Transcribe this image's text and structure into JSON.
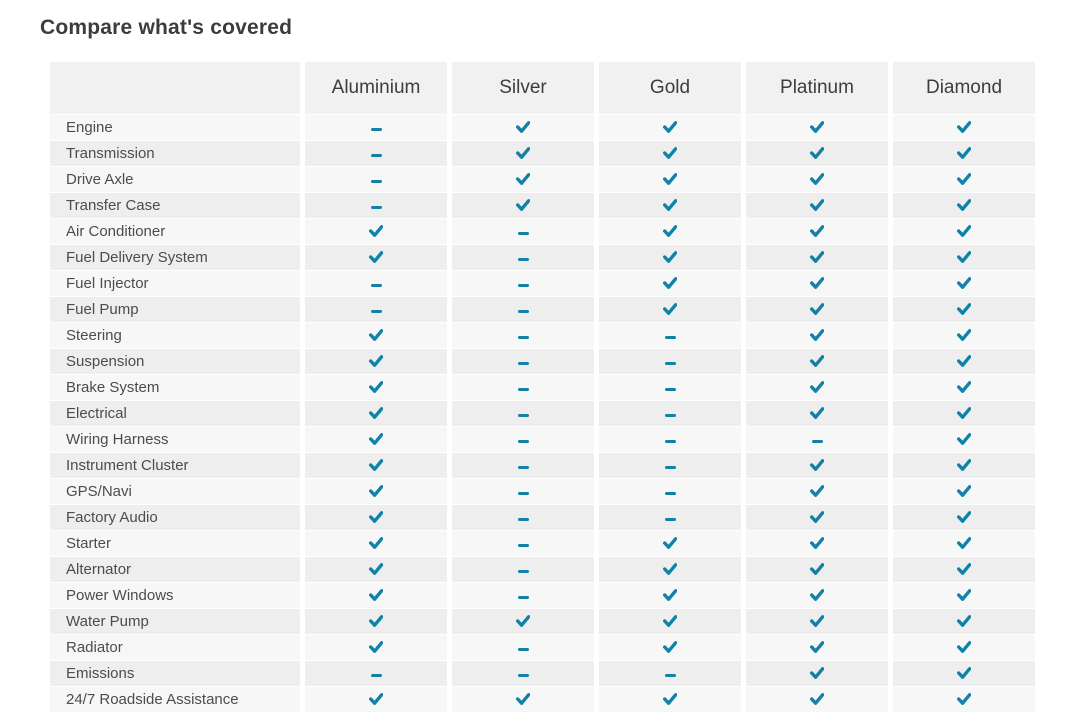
{
  "page": {
    "title": "Compare what's covered"
  },
  "colors": {
    "check": "#1181a8",
    "header_bg": "#f1f1f1",
    "row_odd_bg": "#f7f7f7",
    "row_even_bg": "#eeeeee"
  },
  "table": {
    "columns": [
      "",
      "Aluminium",
      "Silver",
      "Gold",
      "Platinum",
      "Diamond"
    ],
    "rows": [
      {
        "feature": "Engine",
        "coverage": [
          "dash",
          "check",
          "check",
          "check",
          "check"
        ]
      },
      {
        "feature": "Transmission",
        "coverage": [
          "dash",
          "check",
          "check",
          "check",
          "check"
        ]
      },
      {
        "feature": "Drive Axle",
        "coverage": [
          "dash",
          "check",
          "check",
          "check",
          "check"
        ]
      },
      {
        "feature": "Transfer Case",
        "coverage": [
          "dash",
          "check",
          "check",
          "check",
          "check"
        ]
      },
      {
        "feature": "Air Conditioner",
        "coverage": [
          "check",
          "dash",
          "check",
          "check",
          "check"
        ]
      },
      {
        "feature": "Fuel Delivery System",
        "coverage": [
          "check",
          "dash",
          "check",
          "check",
          "check"
        ]
      },
      {
        "feature": "Fuel Injector",
        "coverage": [
          "dash",
          "dash",
          "check",
          "check",
          "check"
        ]
      },
      {
        "feature": "Fuel Pump",
        "coverage": [
          "dash",
          "dash",
          "check",
          "check",
          "check"
        ]
      },
      {
        "feature": "Steering",
        "coverage": [
          "check",
          "dash",
          "dash",
          "check",
          "check"
        ]
      },
      {
        "feature": "Suspension",
        "coverage": [
          "check",
          "dash",
          "dash",
          "check",
          "check"
        ]
      },
      {
        "feature": "Brake System",
        "coverage": [
          "check",
          "dash",
          "dash",
          "check",
          "check"
        ]
      },
      {
        "feature": "Electrical",
        "coverage": [
          "check",
          "dash",
          "dash",
          "check",
          "check"
        ]
      },
      {
        "feature": "Wiring Harness",
        "coverage": [
          "check",
          "dash",
          "dash",
          "dash",
          "check"
        ]
      },
      {
        "feature": "Instrument Cluster",
        "coverage": [
          "check",
          "dash",
          "dash",
          "check",
          "check"
        ]
      },
      {
        "feature": "GPS/Navi",
        "coverage": [
          "check",
          "dash",
          "dash",
          "check",
          "check"
        ]
      },
      {
        "feature": "Factory Audio",
        "coverage": [
          "check",
          "dash",
          "dash",
          "check",
          "check"
        ]
      },
      {
        "feature": "Starter",
        "coverage": [
          "check",
          "dash",
          "check",
          "check",
          "check"
        ]
      },
      {
        "feature": "Alternator",
        "coverage": [
          "check",
          "dash",
          "check",
          "check",
          "check"
        ]
      },
      {
        "feature": "Power Windows",
        "coverage": [
          "check",
          "dash",
          "check",
          "check",
          "check"
        ]
      },
      {
        "feature": "Water Pump",
        "coverage": [
          "check",
          "check",
          "check",
          "check",
          "check"
        ]
      },
      {
        "feature": "Radiator",
        "coverage": [
          "check",
          "dash",
          "check",
          "check",
          "check"
        ]
      },
      {
        "feature": "Emissions",
        "coverage": [
          "dash",
          "dash",
          "dash",
          "check",
          "check"
        ]
      },
      {
        "feature": "24/7 Roadside Assistance",
        "coverage": [
          "check",
          "check",
          "check",
          "check",
          "check"
        ]
      }
    ]
  }
}
